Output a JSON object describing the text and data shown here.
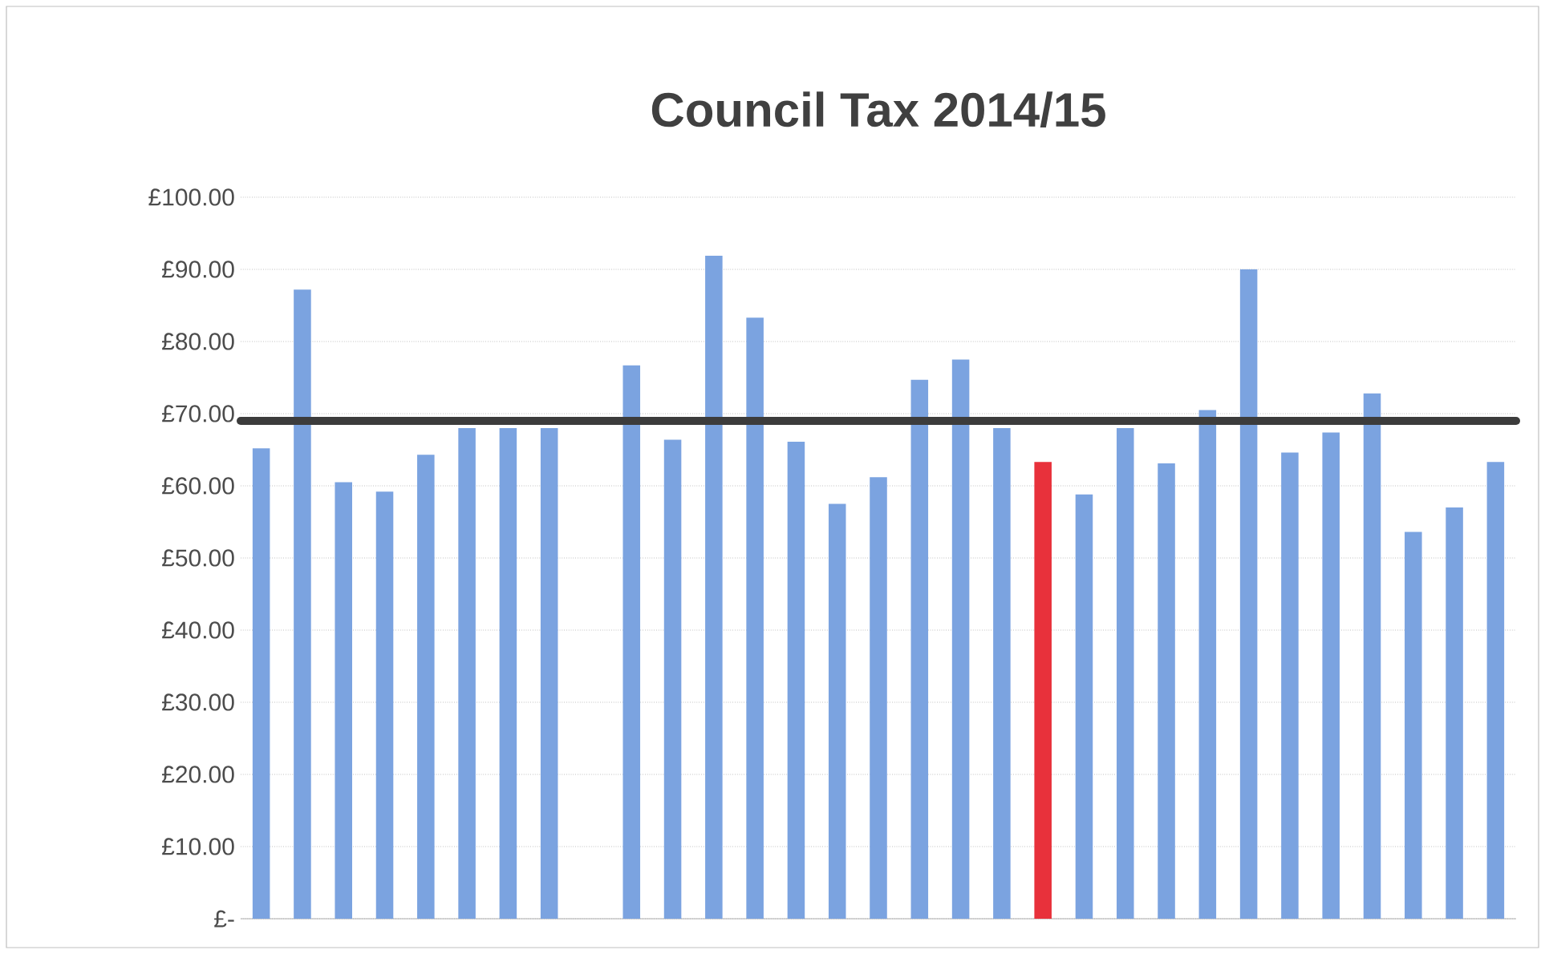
{
  "chart_data": {
    "type": "bar",
    "title": "Council Tax 2014/15",
    "categories": [
      null,
      null,
      null,
      null,
      null,
      null,
      null,
      null,
      null,
      null,
      null,
      null,
      null,
      null,
      null,
      null,
      null,
      null,
      null,
      null,
      null,
      null,
      null,
      null,
      null,
      null,
      null,
      null,
      null,
      null,
      null
    ],
    "values": [
      65.2,
      87.2,
      60.5,
      59.2,
      64.3,
      68,
      68,
      68,
      null,
      76.7,
      66.4,
      91.9,
      83.3,
      66.1,
      57.5,
      61.2,
      74.7,
      77.5,
      68,
      63.3,
      58.8,
      68,
      63.1,
      70.5,
      90,
      64.6,
      67.4,
      72.8,
      53.6,
      57,
      63.3
    ],
    "colors": [
      "#7ba3e0",
      "#7ba3e0",
      "#7ba3e0",
      "#7ba3e0",
      "#7ba3e0",
      "#7ba3e0",
      "#7ba3e0",
      "#7ba3e0",
      "#7ba3e0",
      "#7ba3e0",
      "#7ba3e0",
      "#7ba3e0",
      "#7ba3e0",
      "#7ba3e0",
      "#7ba3e0",
      "#7ba3e0",
      "#7ba3e0",
      "#7ba3e0",
      "#7ba3e0",
      "#e8313b",
      "#7ba3e0",
      "#7ba3e0",
      "#7ba3e0",
      "#7ba3e0",
      "#7ba3e0",
      "#7ba3e0",
      "#7ba3e0",
      "#7ba3e0",
      "#7ba3e0",
      "#7ba3e0",
      "#7ba3e0"
    ],
    "ylim": [
      0,
      100
    ],
    "yticks": [
      {
        "value": 0,
        "label": "£-"
      },
      {
        "value": 10,
        "label": "£10.00"
      },
      {
        "value": 20,
        "label": "£20.00"
      },
      {
        "value": 30,
        "label": "£30.00"
      },
      {
        "value": 40,
        "label": "£40.00"
      },
      {
        "value": 50,
        "label": "£50.00"
      },
      {
        "value": 60,
        "label": "£60.00"
      },
      {
        "value": 70,
        "label": "£70.00"
      },
      {
        "value": 80,
        "label": "£80.00"
      },
      {
        "value": 90,
        "label": "£90.00"
      },
      {
        "value": 100,
        "label": "£100.00"
      }
    ],
    "ref_lines": [
      {
        "axis": "y",
        "value": 69,
        "color": "#3c3c3c"
      }
    ],
    "grid": "y",
    "tick_labels": "y"
  }
}
